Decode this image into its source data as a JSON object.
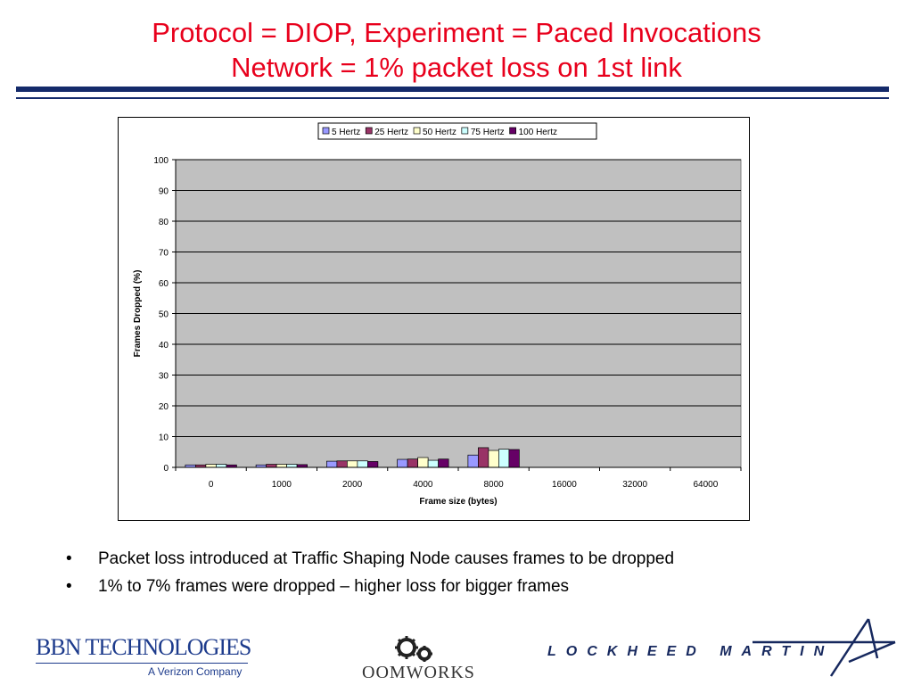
{
  "slide": {
    "title_line1": "Protocol = DIOP, Experiment = Paced Invocations",
    "title_line2": "Network = 1% packet loss on 1st link",
    "bullet_glyph": "•",
    "bullets": [
      "Packet loss introduced at Traffic Shaping Node causes frames to be dropped",
      "1% to 7% frames were dropped – higher loss for bigger frames"
    ],
    "title_color": "#e8001c",
    "rule_color": "#142a6a"
  },
  "logos": {
    "bbn_name": "BBN TECHNOLOGIES",
    "bbn_subtitle": "A Verizon Company",
    "oomworks_name": "OOMWORKS",
    "lockheed_name": "LOCKHEED MARTIN"
  },
  "chart_data": {
    "type": "bar",
    "title": "",
    "xlabel": "Frame size (bytes)",
    "ylabel": "Frames Dropped (%)",
    "ylim": [
      0,
      100
    ],
    "yticks": [
      0,
      10,
      20,
      30,
      40,
      50,
      60,
      70,
      80,
      90,
      100
    ],
    "categories": [
      "0",
      "1000",
      "2000",
      "4000",
      "8000",
      "16000",
      "32000",
      "64000"
    ],
    "grid": true,
    "legend_position": "top",
    "plot_background": "#c0c0c0",
    "series": [
      {
        "name": "5 Hertz",
        "color": "#9999ff",
        "values": [
          0.8,
          0.8,
          2.0,
          2.6,
          4.0,
          null,
          null,
          null
        ]
      },
      {
        "name": "25 Hertz",
        "color": "#993366",
        "values": [
          0.8,
          1.0,
          2.1,
          2.7,
          6.4,
          null,
          null,
          null
        ]
      },
      {
        "name": "50 Hertz",
        "color": "#ffffcc",
        "values": [
          1.0,
          1.0,
          2.1,
          3.2,
          5.5,
          null,
          null,
          null
        ]
      },
      {
        "name": "75 Hertz",
        "color": "#ccffff",
        "values": [
          1.0,
          1.0,
          2.1,
          2.3,
          5.9,
          null,
          null,
          null
        ]
      },
      {
        "name": "100 Hertz",
        "color": "#660066",
        "values": [
          0.8,
          0.9,
          1.9,
          2.7,
          5.8,
          null,
          null,
          null
        ]
      }
    ]
  }
}
